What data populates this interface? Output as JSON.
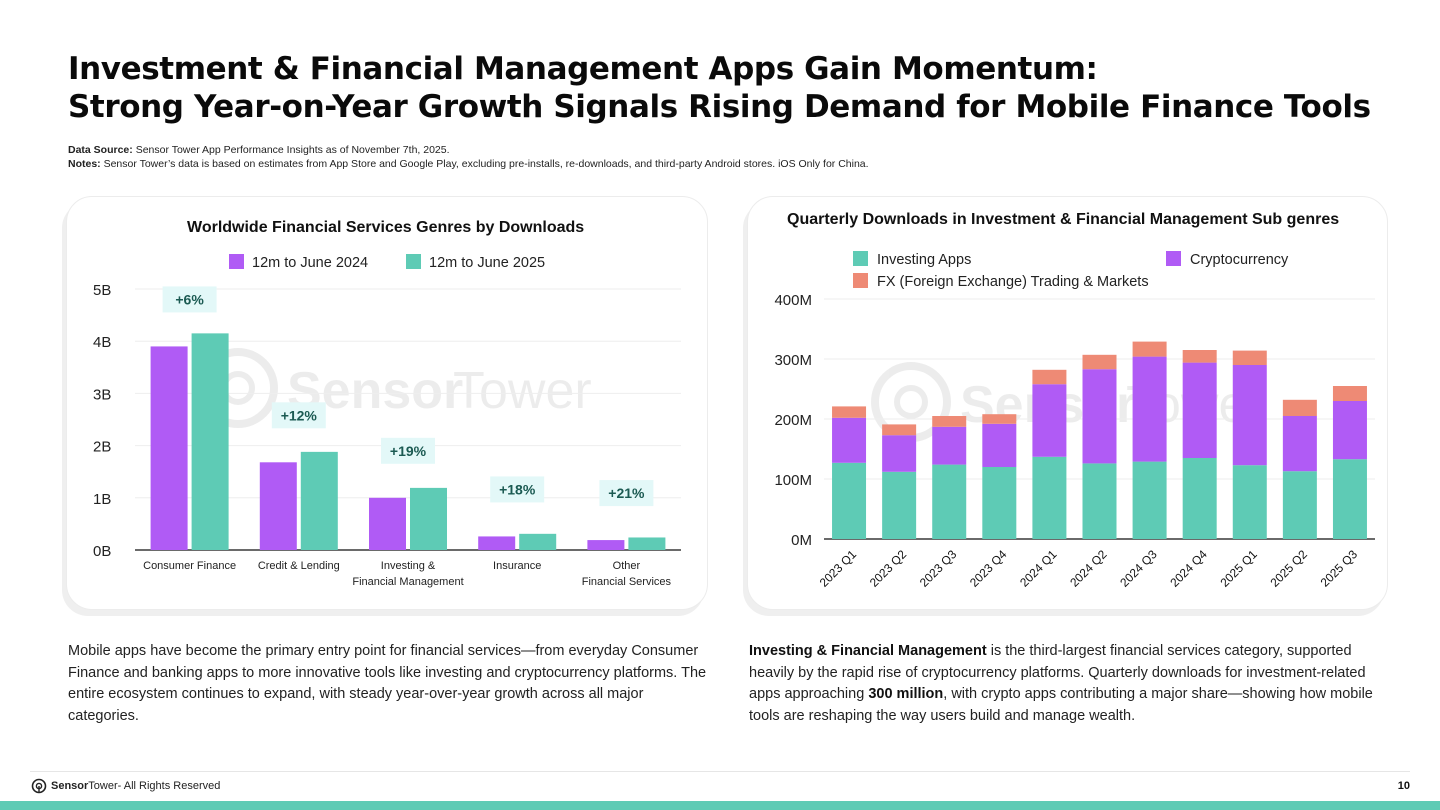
{
  "page": {
    "title_line1": "Investment & Financial Management Apps Gain Momentum:",
    "title_line2": "Strong Year-on-Year Growth Signals Rising Demand for Mobile Finance Tools",
    "source_label": "Data Source:",
    "source_text": "Sensor Tower App Performance Insights as of November 7th, 2025.",
    "notes_label": "Notes:",
    "notes_text": "Sensor Tower’s data is based on estimates from App Store and Google Play, excluding pre-installs, re-downloads, and third-party Android stores. iOS Only for China.",
    "page_number": "10",
    "footer_brand_bold": "Sensor",
    "footer_brand_light": "Tower",
    "footer_rights": " - All Rights Reserved",
    "watermark_bold": "Sensor",
    "watermark_light": "Tower"
  },
  "colors": {
    "purple": "#b05bf5",
    "teal": "#5ecbb5",
    "salmon": "#ee8a75",
    "badge_bg": "#e3f8f8",
    "badge_text": "#1b5a52",
    "accent_bar": "#5ecbb5"
  },
  "text": {
    "left_paragraph": "Mobile apps have become the primary entry point for financial services—from everyday Consumer Finance and banking apps to more innovative tools like investing and cryptocurrency platforms. The entire ecosystem continues to expand, with steady year-over-year growth across all major categories.",
    "right_bold1": "Investing & Financial Management",
    "right_part1": " is the third-largest financial services category, supported heavily by the rapid rise of cryptocurrency platforms. Quarterly downloads for investment-related apps approaching ",
    "right_bold2": "300 million",
    "right_part2": ", with crypto apps contributing a major share—showing how mobile tools are reshaping the way users build and manage wealth."
  },
  "chart_data": [
    {
      "type": "bar",
      "title": "Worldwide Financial Services Genres by Downloads",
      "categories": [
        "Consumer Finance",
        "Credit & Lending",
        "Investing &\nFinancial Management",
        "Insurance",
        "Other\nFinancial Services"
      ],
      "series": [
        {
          "name": "12m to June 2024",
          "color": "#b05bf5",
          "values": [
            3.9,
            1.68,
            1.0,
            0.26,
            0.19
          ]
        },
        {
          "name": "12m to June 2025",
          "color": "#5ecbb5",
          "values": [
            4.15,
            1.88,
            1.19,
            0.31,
            0.24
          ]
        }
      ],
      "growth_labels": [
        "+6%",
        "+12%",
        "+19%",
        "+18%",
        "+21%"
      ],
      "y_ticks": [
        "0B",
        "1B",
        "2B",
        "3B",
        "4B",
        "5B"
      ],
      "ylim": [
        0,
        5
      ],
      "unit": "B",
      "legend_position": "top-center"
    },
    {
      "type": "bar",
      "stacked": true,
      "title": "Quarterly Downloads in Investment & Financial Management Sub genres",
      "categories": [
        "2023 Q1",
        "2023 Q2",
        "2023 Q3",
        "2023 Q4",
        "2024 Q1",
        "2024 Q2",
        "2024 Q3",
        "2024 Q4",
        "2025 Q1",
        "2025 Q2",
        "2025 Q3"
      ],
      "series": [
        {
          "name": "Investing Apps",
          "color": "#5ecbb5",
          "values": [
            127,
            112,
            124,
            120,
            137,
            126,
            129,
            135,
            123,
            113,
            133
          ]
        },
        {
          "name": "Cryptocurrency",
          "color": "#b05bf5",
          "values": [
            75,
            61,
            63,
            72,
            121,
            157,
            175,
            159,
            167,
            92,
            97
          ]
        },
        {
          "name": "FX (Foreign Exchange) Trading & Markets",
          "color": "#ee8a75",
          "values": [
            19,
            18,
            18,
            16,
            24,
            24,
            25,
            21,
            24,
            27,
            25
          ]
        }
      ],
      "y_ticks": [
        "0M",
        "100M",
        "200M",
        "300M",
        "400M"
      ],
      "ylim": [
        0,
        400
      ],
      "unit": "M",
      "legend_position": "top"
    }
  ]
}
